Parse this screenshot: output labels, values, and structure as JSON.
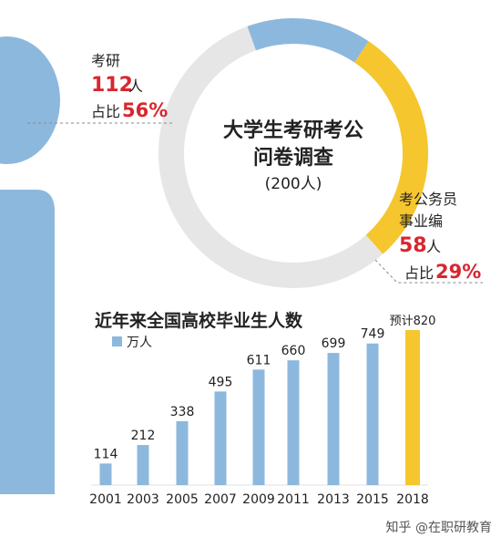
{
  "survey": {
    "title_line1": "大学生考研考公",
    "title_line2": "问卷调查",
    "total": "(200人)",
    "kaoyan": {
      "label": "考研",
      "count": "112",
      "unit": "人",
      "share_prefix": "占比",
      "share": "56%"
    },
    "kaogong": {
      "label_line1": "考公务员",
      "label_line2": "事业编",
      "count": "58",
      "unit": "人",
      "share_prefix": "占比",
      "share": "29%"
    }
  },
  "watermark": "知乎 @在职研教育",
  "colors": {
    "blue": "#8db8de",
    "yellow": "#f5c62e",
    "grey": "#e6e6e6",
    "red": "#d9262f",
    "text": "#222222"
  },
  "chart_data": [
    {
      "type": "pie",
      "title": "大学生考研考公问卷调查",
      "total": 200,
      "slices": [
        {
          "name": "考研",
          "value": 112,
          "share": 56,
          "color": "#e6e6e6"
        },
        {
          "name": "考公务员事业编",
          "value": 58,
          "share": 29,
          "color": "#f5c62e"
        },
        {
          "value": 30,
          "share": 15,
          "color": "#8db8de"
        }
      ]
    },
    {
      "type": "bar",
      "title": "近年来全国高校毕业生人数",
      "legend": "万人",
      "categories": [
        "2001",
        "2003",
        "2005",
        "2007",
        "2009",
        "2011",
        "2013",
        "2015",
        "2018"
      ],
      "values": [
        114,
        212,
        338,
        495,
        611,
        660,
        699,
        749,
        820
      ],
      "value_labels": [
        "114",
        "212",
        "338",
        "495",
        "611",
        "660",
        "699",
        "749",
        "预计820"
      ],
      "colors": [
        "#8db8de",
        "#8db8de",
        "#8db8de",
        "#8db8de",
        "#8db8de",
        "#8db8de",
        "#8db8de",
        "#8db8de",
        "#f5c62e"
      ],
      "ylim": [
        0,
        820
      ]
    }
  ]
}
